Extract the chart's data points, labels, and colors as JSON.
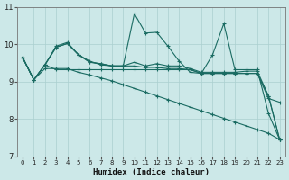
{
  "xlabel": "Humidex (Indice chaleur)",
  "xlim": [
    -0.5,
    23.5
  ],
  "ylim": [
    7,
    11
  ],
  "yticks": [
    7,
    8,
    9,
    10,
    11
  ],
  "xticks": [
    0,
    1,
    2,
    3,
    4,
    5,
    6,
    7,
    8,
    9,
    10,
    11,
    12,
    13,
    14,
    15,
    16,
    17,
    18,
    19,
    20,
    21,
    22,
    23
  ],
  "bg_color": "#cce8e8",
  "line_color": "#1a6b62",
  "grid_color": "#aacfcf",
  "lines": [
    {
      "x": [
        0,
        1,
        2,
        3,
        4,
        5,
        6,
        7,
        8,
        9,
        10,
        11,
        12,
        13,
        14,
        15,
        16,
        17,
        18,
        19,
        20,
        21,
        22,
        23
      ],
      "y": [
        9.65,
        9.05,
        9.45,
        9.95,
        10.05,
        9.72,
        9.55,
        9.45,
        9.42,
        9.42,
        10.82,
        10.3,
        10.32,
        9.95,
        9.55,
        9.25,
        9.22,
        9.72,
        10.55,
        9.32,
        9.32,
        9.32,
        8.15,
        7.45
      ]
    },
    {
      "x": [
        0,
        1,
        2,
        3,
        4,
        5,
        6,
        7,
        8,
        9,
        10,
        11,
        12,
        13,
        14,
        15,
        16,
        17,
        18,
        19,
        20,
        21,
        22,
        23
      ],
      "y": [
        9.65,
        9.05,
        9.45,
        9.92,
        10.02,
        9.72,
        9.52,
        9.48,
        9.42,
        9.42,
        9.52,
        9.42,
        9.48,
        9.42,
        9.42,
        9.35,
        9.25,
        9.25,
        9.25,
        9.25,
        9.28,
        9.28,
        8.62,
        7.45
      ]
    },
    {
      "x": [
        0,
        1,
        2,
        3,
        4,
        5,
        6,
        7,
        8,
        9,
        10,
        11,
        12,
        13,
        14,
        15,
        16,
        17,
        18,
        19,
        20,
        21,
        22,
        23
      ],
      "y": [
        9.65,
        9.05,
        9.45,
        9.92,
        10.02,
        9.72,
        9.52,
        9.48,
        9.42,
        9.42,
        9.42,
        9.38,
        9.38,
        9.35,
        9.35,
        9.32,
        9.22,
        9.22,
        9.22,
        9.22,
        9.22,
        9.22,
        8.62,
        7.45
      ]
    },
    {
      "x": [
        0,
        1,
        2,
        3,
        4,
        5,
        6,
        7,
        8,
        9,
        10,
        11,
        12,
        13,
        14,
        15,
        16,
        17,
        18,
        19,
        20,
        21,
        22,
        23
      ],
      "y": [
        9.65,
        9.05,
        9.45,
        9.32,
        9.32,
        9.32,
        9.32,
        9.32,
        9.32,
        9.32,
        9.32,
        9.32,
        9.32,
        9.32,
        9.32,
        9.32,
        9.22,
        9.22,
        9.22,
        9.22,
        9.22,
        9.22,
        8.55,
        8.45
      ]
    },
    {
      "x": [
        0,
        1,
        2,
        3,
        4,
        5,
        6,
        7,
        8,
        9,
        10,
        11,
        12,
        13,
        14,
        15,
        16,
        17,
        18,
        19,
        20,
        21,
        22,
        23
      ],
      "y": [
        9.65,
        9.05,
        9.35,
        9.35,
        9.35,
        9.25,
        9.18,
        9.1,
        9.02,
        8.92,
        8.82,
        8.72,
        8.62,
        8.52,
        8.42,
        8.32,
        8.22,
        8.12,
        8.02,
        7.92,
        7.82,
        7.72,
        7.62,
        7.45
      ]
    }
  ]
}
